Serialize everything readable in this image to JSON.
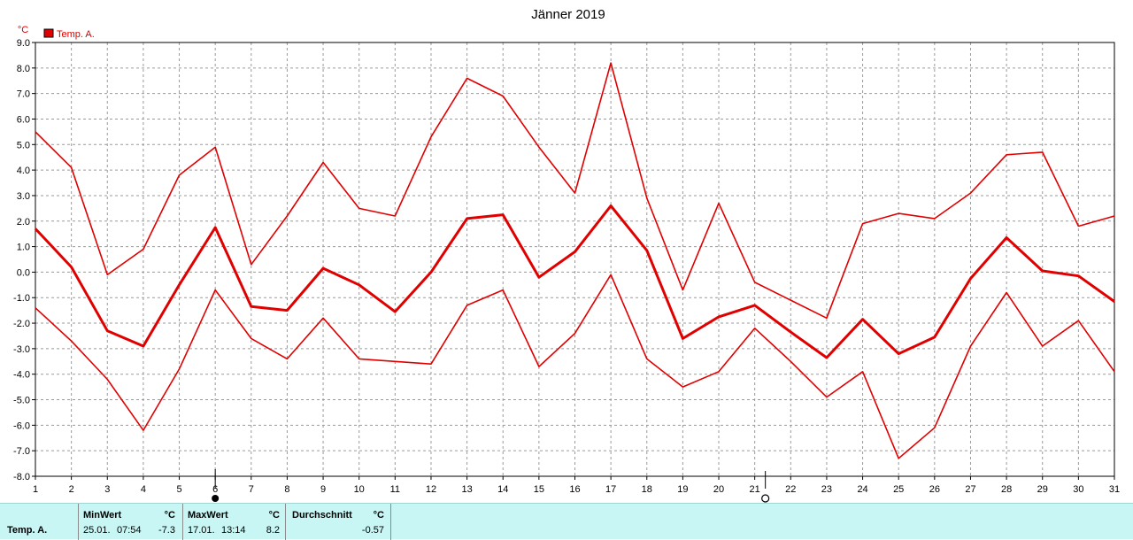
{
  "colors": {
    "series": "#e00000",
    "grid": "#9a9a9a",
    "axis": "#000000",
    "summary_bg": "#c8f6f4"
  },
  "icons": {
    "full_moon_day": "full-moon-icon",
    "new_moon_day": "new-moon-icon"
  },
  "chart_data": {
    "type": "line",
    "title": "Jänner 2019",
    "ylabel": "°C",
    "xlabel": "",
    "ylim": [
      -8,
      9
    ],
    "ytick_step": 1,
    "grid": true,
    "legend_position": "top-left",
    "legend": [
      "Temp. A."
    ],
    "x": [
      1,
      2,
      3,
      4,
      5,
      6,
      7,
      8,
      9,
      10,
      11,
      12,
      13,
      14,
      15,
      16,
      17,
      18,
      19,
      20,
      21,
      22,
      23,
      24,
      25,
      26,
      27,
      28,
      29,
      30,
      31
    ],
    "series": [
      {
        "name": "Temp. A.",
        "role": "max",
        "values": [
          5.5,
          4.1,
          -0.1,
          0.9,
          3.8,
          4.9,
          0.3,
          2.2,
          4.3,
          2.5,
          2.2,
          5.3,
          7.6,
          6.9,
          4.9,
          3.1,
          8.2,
          2.9,
          -0.7,
          2.7,
          -0.4,
          -1.1,
          -1.8,
          1.9,
          2.3,
          2.1,
          3.1,
          4.6,
          4.7,
          1.8,
          2.2
        ]
      },
      {
        "name": "Temp. A.",
        "role": "mean",
        "values": [
          1.7,
          0.2,
          -2.3,
          -2.9,
          -0.5,
          1.75,
          -1.35,
          -1.5,
          0.15,
          -0.5,
          -1.55,
          0.0,
          2.1,
          2.25,
          -0.2,
          0.8,
          2.6,
          0.85,
          -2.6,
          -1.75,
          -1.3,
          -2.35,
          -3.35,
          -1.85,
          -3.2,
          -2.55,
          -0.25,
          1.35,
          0.05,
          -0.15,
          -1.15
        ]
      },
      {
        "name": "Temp. A.",
        "role": "min",
        "values": [
          -1.4,
          -2.7,
          -4.2,
          -6.2,
          -3.8,
          -0.7,
          -2.6,
          -3.4,
          -1.8,
          -3.4,
          -3.5,
          -3.6,
          -1.3,
          -0.7,
          -3.7,
          -2.4,
          -0.1,
          -3.4,
          -4.5,
          -3.9,
          -2.2,
          -3.5,
          -4.9,
          -3.9,
          -7.3,
          -6.1,
          -2.9,
          -0.8,
          -2.9,
          -1.9,
          -3.9
        ]
      }
    ],
    "moon_markers": [
      {
        "day": 6,
        "phase": "full"
      },
      {
        "day": 21,
        "phase": "new"
      }
    ]
  },
  "summary": {
    "series_label": "Temp. A.",
    "min": {
      "header": "MinWert",
      "unit": "°C",
      "date": "25.01.",
      "time": "07:54",
      "value": "-7.3"
    },
    "max": {
      "header": "MaxWert",
      "unit": "°C",
      "date": "17.01.",
      "time": "13:14",
      "value": "8.2"
    },
    "avg": {
      "header": "Durchschnitt",
      "unit": "°C",
      "value": "-0.57"
    }
  }
}
